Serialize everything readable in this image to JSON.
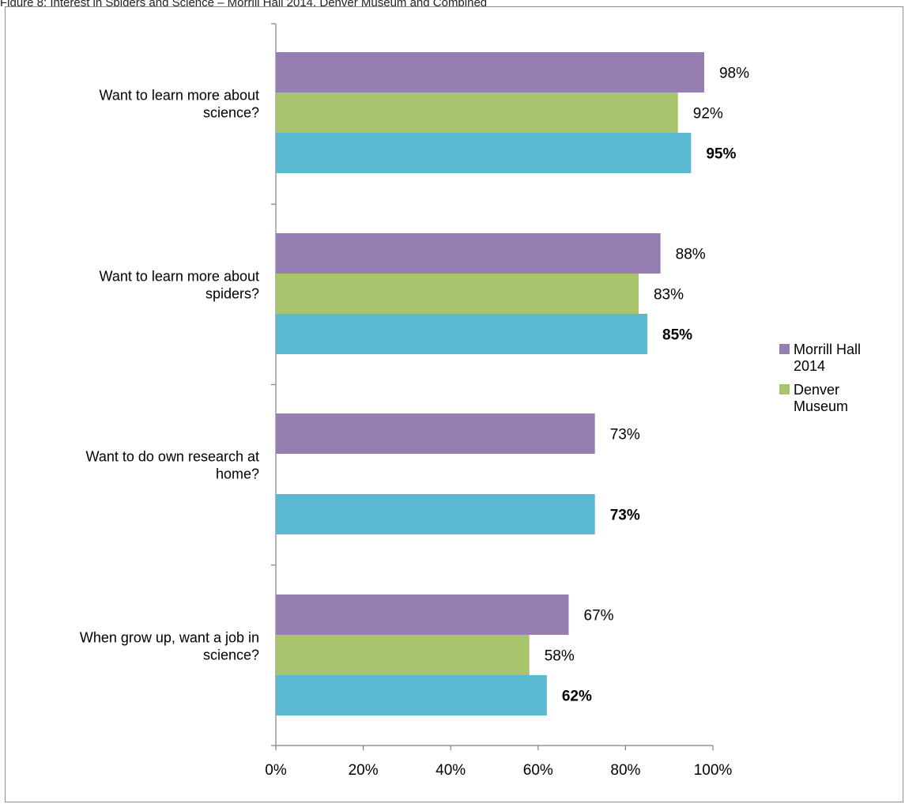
{
  "caption": "Figure 8: Interest in Spiders and Science – Morrill Hall 2014, Denver Museum and Combined",
  "colors": {
    "series1": "#967db2",
    "series2": "#a8c46c",
    "series3": "#5cb9d2",
    "axis": "#808080",
    "frame": "#8c8c8c"
  },
  "chart_data": {
    "type": "bar",
    "orientation": "horizontal",
    "categories": [
      [
        "Want to learn more about",
        "science?"
      ],
      [
        "Want to learn more about",
        "spiders?"
      ],
      [
        "Want to do own research at",
        "home?"
      ],
      [
        "When grow up, want a job in",
        "science?"
      ]
    ],
    "series": [
      {
        "name": "Morrill Hall 2014",
        "values": [
          98,
          88,
          73,
          67
        ],
        "labels": [
          "98%",
          "88%",
          "73%",
          "67%"
        ],
        "bold": false
      },
      {
        "name": "Denver Museum",
        "values": [
          92,
          83,
          null,
          58
        ],
        "labels": [
          "92%",
          "83%",
          "",
          "58%"
        ],
        "bold": false
      },
      {
        "values": [
          95,
          85,
          73,
          62
        ],
        "labels": [
          "95%",
          "85%",
          "73%",
          "62%"
        ],
        "bold": true
      }
    ],
    "xlim": [
      0,
      100
    ],
    "xticks": [
      "0%",
      "20%",
      "40%",
      "60%",
      "80%",
      "100%"
    ],
    "legend_position": "right",
    "legend_entries": [
      [
        "Morrill Hall",
        "2014"
      ],
      [
        "Denver",
        "Museum"
      ]
    ]
  }
}
